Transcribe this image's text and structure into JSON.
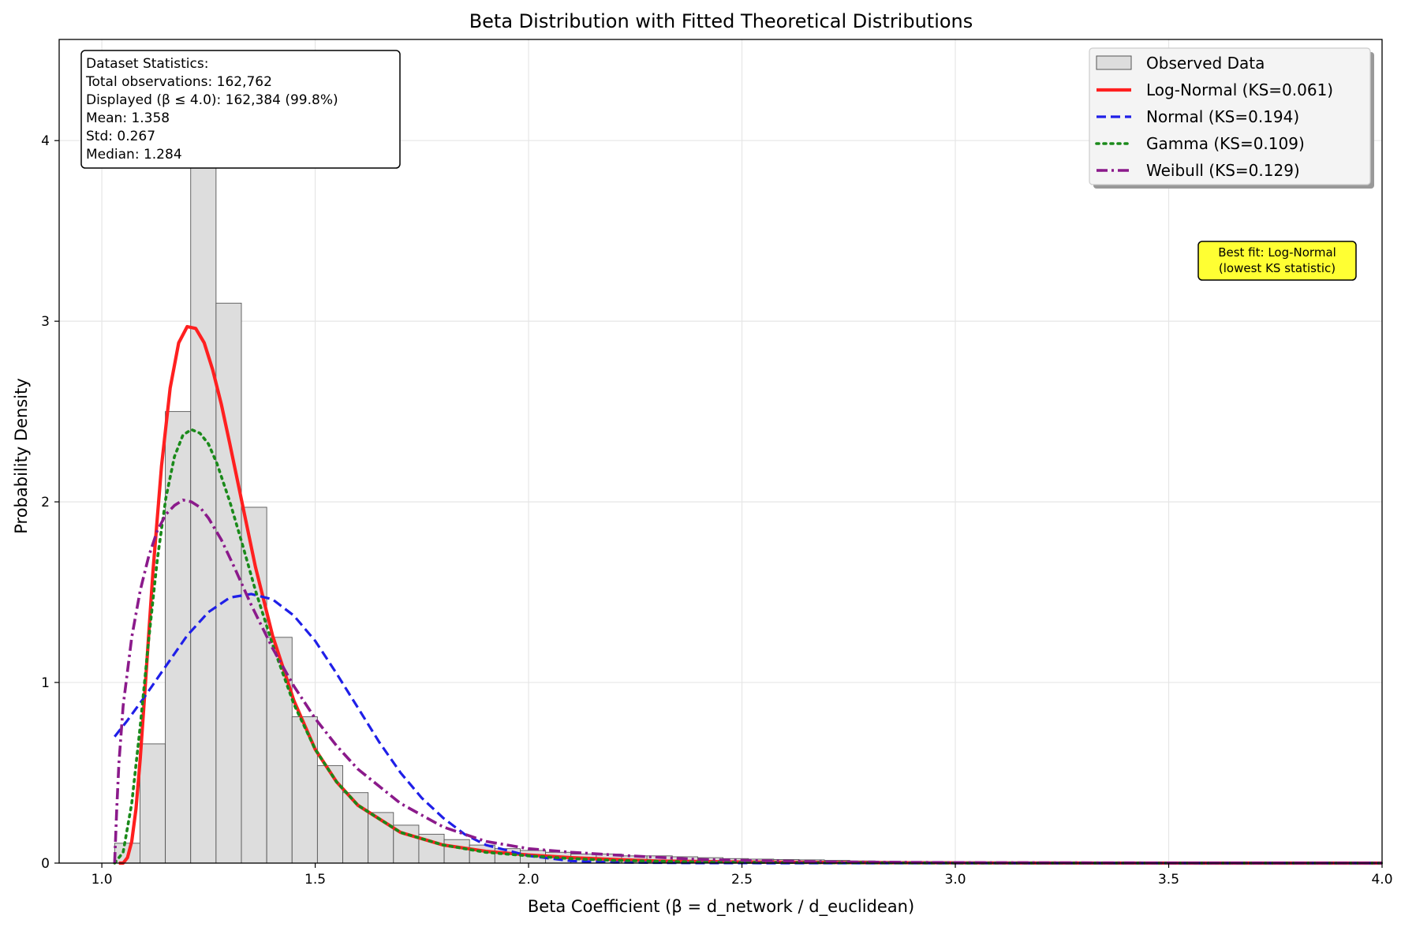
{
  "chart_data": {
    "type": "bar",
    "title": "Beta Distribution with Fitted Theoretical Distributions",
    "xlabel": "Beta Coefficient (β = d_network / d_euclidean)",
    "ylabel": "Probability Density",
    "xlim": [
      0.9,
      4.0
    ],
    "ylim": [
      0,
      4.56
    ],
    "xticks": [
      "1.0",
      "1.5",
      "2.0",
      "2.5",
      "3.0",
      "3.5",
      "4.0"
    ],
    "xtick_values": [
      1.0,
      1.5,
      2.0,
      2.5,
      3.0,
      3.5,
      4.0
    ],
    "yticks": [
      "0",
      "1",
      "2",
      "3",
      "4"
    ],
    "ytick_values": [
      0,
      1,
      2,
      3,
      4
    ],
    "grid": true,
    "legend_position": "top-right",
    "histogram": {
      "name": "Observed Data",
      "color": "#dddddd",
      "edge_color": "#555555",
      "bin_start": 1.03,
      "bin_width": 0.0594,
      "values": [
        0.11,
        0.66,
        2.5,
        3.97,
        3.1,
        1.97,
        1.25,
        0.81,
        0.54,
        0.39,
        0.28,
        0.21,
        0.16,
        0.13,
        0.1,
        0.08,
        0.07,
        0.06,
        0.05,
        0.05,
        0.04,
        0.04,
        0.035,
        0.03,
        0.025,
        0.022,
        0.02,
        0.018,
        0.015,
        0.012,
        0.01,
        0.009,
        0.008,
        0.007,
        0.006,
        0.005,
        0.004,
        0.004,
        0.003,
        0.003,
        0.003,
        0.002,
        0.002,
        0.002,
        0.002,
        0.001,
        0.001,
        0.001,
        0.001,
        0.001
      ]
    },
    "series": [
      {
        "name": "Log-Normal (KS=0.061)",
        "color": "#ff2020",
        "dash": "solid",
        "width": 4.2,
        "x": [
          1.04,
          1.05,
          1.06,
          1.07,
          1.08,
          1.09,
          1.1,
          1.12,
          1.14,
          1.16,
          1.18,
          1.2,
          1.22,
          1.24,
          1.26,
          1.28,
          1.3,
          1.33,
          1.36,
          1.4,
          1.45,
          1.5,
          1.55,
          1.6,
          1.7,
          1.8,
          1.9,
          2.0,
          2.1,
          2.2,
          2.3,
          2.5,
          2.8,
          3.2,
          3.6,
          4.0
        ],
        "y": [
          0,
          0,
          0.03,
          0.12,
          0.3,
          0.58,
          0.92,
          1.62,
          2.2,
          2.63,
          2.88,
          2.97,
          2.96,
          2.88,
          2.73,
          2.54,
          2.32,
          1.98,
          1.64,
          1.26,
          0.9,
          0.63,
          0.45,
          0.32,
          0.17,
          0.1,
          0.065,
          0.045,
          0.03,
          0.02,
          0.012,
          0.006,
          0.002,
          0.0005,
          0.0002,
          0.0001
        ]
      },
      {
        "name": "Normal (KS=0.194)",
        "color": "#1f1fe8",
        "dash": "dashed",
        "width": 3.2,
        "x": [
          1.03,
          1.06,
          1.1,
          1.15,
          1.2,
          1.25,
          1.3,
          1.35,
          1.4,
          1.45,
          1.5,
          1.55,
          1.6,
          1.65,
          1.7,
          1.75,
          1.8,
          1.85,
          1.9,
          2.0,
          2.1,
          2.2,
          2.4,
          2.6,
          3.0,
          3.5,
          4.0
        ],
        "y": [
          0.7,
          0.79,
          0.92,
          1.09,
          1.26,
          1.39,
          1.47,
          1.49,
          1.46,
          1.37,
          1.23,
          1.05,
          0.86,
          0.67,
          0.5,
          0.36,
          0.25,
          0.16,
          0.1,
          0.04,
          0.012,
          0.004,
          0.0003,
          0,
          0,
          0,
          0
        ]
      },
      {
        "name": "Gamma (KS=0.109)",
        "color": "#1a8a1a",
        "dash": "dotted",
        "width": 3.6,
        "x": [
          1.03,
          1.05,
          1.07,
          1.09,
          1.11,
          1.13,
          1.15,
          1.17,
          1.19,
          1.21,
          1.23,
          1.25,
          1.27,
          1.3,
          1.33,
          1.36,
          1.4,
          1.45,
          1.5,
          1.55,
          1.6,
          1.7,
          1.8,
          1.9,
          2.0,
          2.1,
          2.2,
          2.4,
          2.7,
          3.0,
          3.5,
          4.0
        ],
        "y": [
          0,
          0.06,
          0.33,
          0.76,
          1.24,
          1.68,
          2.02,
          2.25,
          2.37,
          2.4,
          2.38,
          2.32,
          2.21,
          2.0,
          1.76,
          1.51,
          1.21,
          0.88,
          0.63,
          0.45,
          0.32,
          0.17,
          0.1,
          0.06,
          0.04,
          0.025,
          0.015,
          0.006,
          0.002,
          0.0006,
          0.0001,
          0
        ]
      },
      {
        "name": "Weibull (KS=0.129)",
        "color": "#8b1a8b",
        "dash": "dashdot",
        "width": 3.6,
        "x": [
          1.03,
          1.035,
          1.04,
          1.05,
          1.07,
          1.09,
          1.11,
          1.13,
          1.15,
          1.17,
          1.19,
          1.21,
          1.23,
          1.25,
          1.28,
          1.31,
          1.35,
          1.4,
          1.45,
          1.5,
          1.55,
          1.6,
          1.7,
          1.8,
          1.9,
          2.0,
          2.1,
          2.2,
          2.4,
          2.7,
          3.0,
          3.5,
          4.0
        ],
        "y": [
          0,
          0.3,
          0.55,
          0.87,
          1.25,
          1.51,
          1.7,
          1.84,
          1.93,
          1.98,
          2.01,
          2.0,
          1.97,
          1.91,
          1.79,
          1.64,
          1.43,
          1.19,
          0.98,
          0.8,
          0.65,
          0.52,
          0.33,
          0.2,
          0.12,
          0.08,
          0.06,
          0.045,
          0.02,
          0.007,
          0.003,
          0.001,
          0.0003
        ]
      }
    ],
    "annotations": {
      "stats_box": [
        "Dataset Statistics:",
        "Total observations: 162,762",
        "Displayed (β ≤ 4.0): 162,384 (99.8%)",
        "Mean: 1.358",
        "Std: 0.267",
        "Median: 1.284"
      ],
      "best_fit_box": [
        "Best fit: Log-Normal",
        "(lowest KS statistic)"
      ],
      "best_fit_color": "#ffff33"
    }
  }
}
